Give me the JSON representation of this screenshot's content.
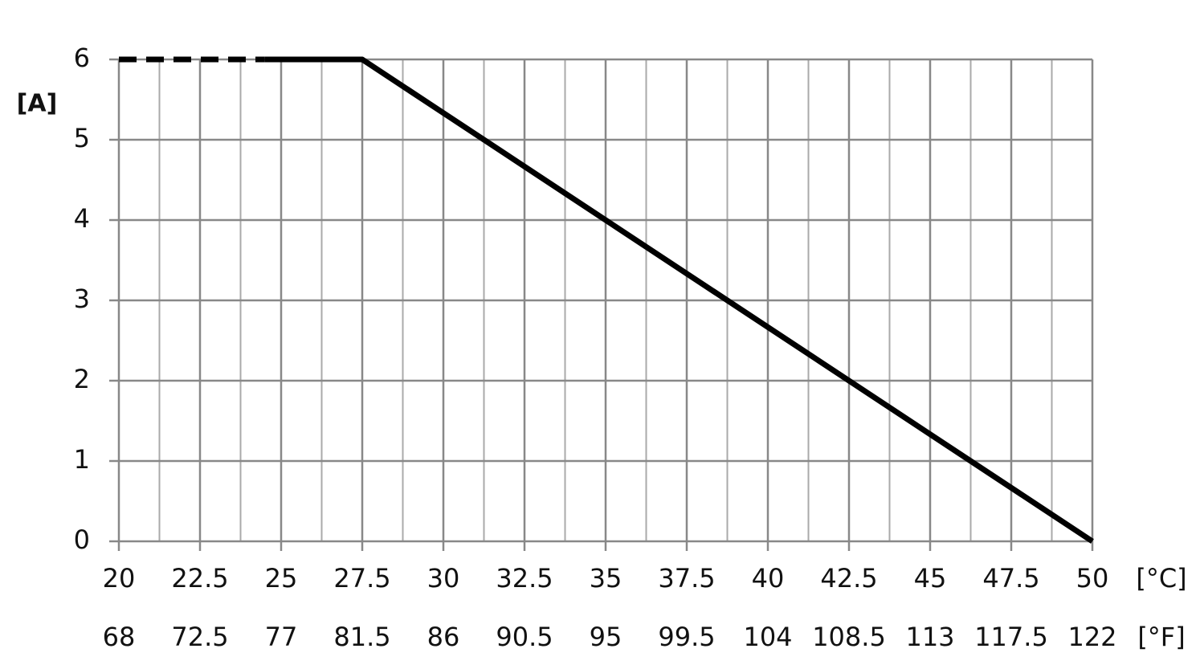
{
  "chart_data": {
    "type": "line",
    "ylabel": "[A]",
    "xlabel": "[°C]",
    "x2label": "[°F]",
    "xlim": [
      20,
      50
    ],
    "xticks": [
      20,
      22.5,
      25,
      27.5,
      30,
      32.5,
      35,
      37.5,
      40,
      42.5,
      45,
      47.5,
      50
    ],
    "x_minor_grid": [
      21.25,
      23.75,
      26.25,
      28.75,
      31.25,
      33.75,
      36.25,
      38.75,
      41.25,
      43.75,
      46.25,
      48.75
    ],
    "x2lim": [
      68,
      122
    ],
    "x2ticks": [
      68,
      72.5,
      77,
      81.5,
      86,
      90.5,
      95,
      99.5,
      104,
      108.5,
      113,
      117.5,
      122
    ],
    "ylim": [
      0,
      6
    ],
    "yticks": [
      0,
      1,
      2,
      3,
      4,
      5,
      6
    ],
    "grid": true,
    "series": [
      {
        "color": "#000000",
        "style": "dashed",
        "x": [
          20,
          24.5
        ],
        "values": [
          6,
          6
        ]
      },
      {
        "color": "#000000",
        "style": "solid",
        "x": [
          24.5,
          27.5,
          50
        ],
        "values": [
          6,
          6,
          0
        ]
      }
    ]
  }
}
